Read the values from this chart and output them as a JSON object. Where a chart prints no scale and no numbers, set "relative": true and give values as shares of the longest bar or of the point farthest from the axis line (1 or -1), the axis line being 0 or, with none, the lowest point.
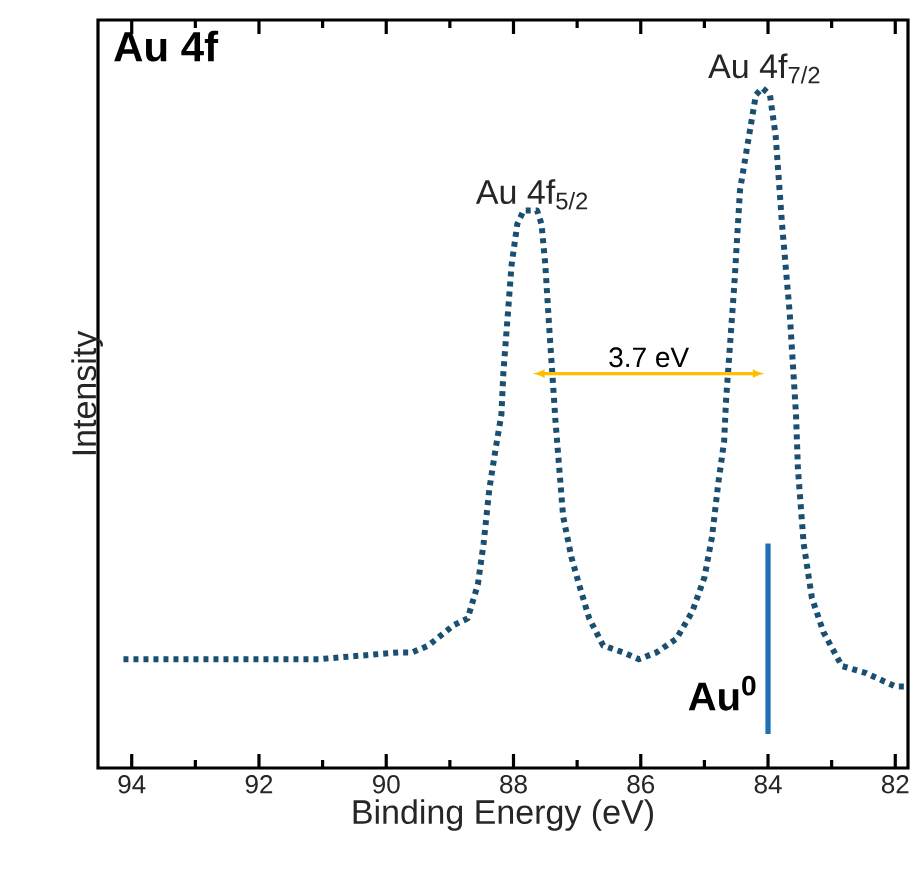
{
  "chart_data": {
    "type": "line",
    "title": "Au 4f",
    "xlabel": "Binding Energy (eV)",
    "ylabel": "Intensity",
    "relative": true,
    "xlim": [
      94.53,
      81.8
    ],
    "xticks": [
      94,
      92,
      90,
      88,
      86,
      84,
      82
    ],
    "annotations": [
      {
        "text": "Au 4f$_{5/2}$",
        "x": 87.7,
        "y": 0.815
      },
      {
        "text": "Au 4f$_{7/2}$",
        "x": 84.05,
        "y": 1.0
      },
      "3.7 eV"
    ],
    "ref_lines": [
      {
        "axis": "x",
        "value": 84,
        "label": "Au$^{0}$",
        "color": "#1f6fb4"
      }
    ],
    "line_style": "dotted",
    "series": [
      {
        "color": "#1b4f72",
        "x": [
          94.13,
          92.94,
          92.0,
          91.06,
          89.81,
          89.59,
          89.34,
          88.94,
          88.72,
          88.56,
          88.47,
          88.38,
          88.28,
          88.19,
          88.16,
          88.03,
          87.94,
          87.84,
          87.63,
          87.56,
          87.5,
          87.44,
          87.34,
          87.28,
          87.22,
          87.09,
          86.97,
          86.81,
          86.59,
          86.28,
          86.03,
          85.75,
          85.44,
          85.19,
          85.0,
          84.88,
          84.78,
          84.69,
          84.66,
          84.53,
          84.44,
          84.28,
          84.19,
          84.09,
          83.97,
          83.88,
          83.78,
          83.66,
          83.56,
          83.53,
          83.44,
          83.31,
          83.13,
          82.84,
          82.47,
          82.0,
          81.81
        ],
        "values": [
          0.16,
          0.16,
          0.16,
          0.16,
          0.17,
          0.17,
          0.18,
          0.21,
          0.22,
          0.27,
          0.33,
          0.41,
          0.47,
          0.52,
          0.58,
          0.74,
          0.8,
          0.82,
          0.82,
          0.8,
          0.74,
          0.65,
          0.51,
          0.44,
          0.37,
          0.31,
          0.27,
          0.22,
          0.18,
          0.17,
          0.16,
          0.17,
          0.19,
          0.23,
          0.28,
          0.34,
          0.42,
          0.48,
          0.54,
          0.71,
          0.85,
          0.94,
          0.99,
          1.0,
          0.99,
          0.93,
          0.8,
          0.67,
          0.52,
          0.44,
          0.33,
          0.25,
          0.2,
          0.15,
          0.14,
          0.12,
          0.12
        ]
      }
    ]
  }
}
